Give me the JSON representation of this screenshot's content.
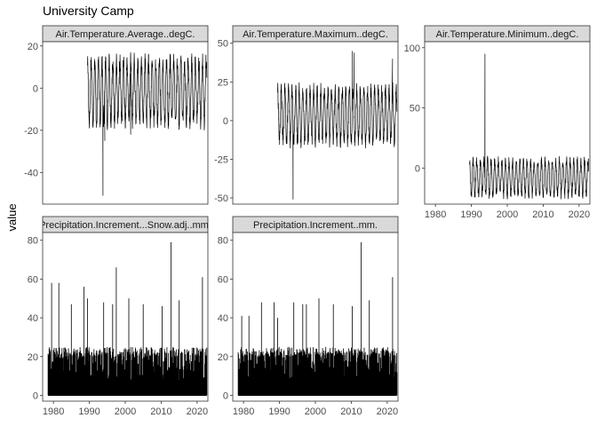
{
  "figure": {
    "title": "University Camp",
    "ylabel": "value"
  },
  "chart_data": [
    {
      "type": "line",
      "panel": "Air.Temperature.Average..degC.",
      "xlim": [
        1977,
        2023
      ],
      "ylim": [
        -55,
        22
      ],
      "yticks": [
        -40,
        -20,
        0,
        20
      ],
      "x_range": [
        1989.5,
        2022.7
      ],
      "band": [
        -20,
        17
      ],
      "spikes": [
        [
          1993.8,
          -51
        ],
        [
          1994.3,
          -25
        ],
        [
          2001.5,
          -22
        ]
      ]
    },
    {
      "type": "line",
      "panel": "Air.Temperature.Maximum..degC.",
      "xlim": [
        1977,
        2023
      ],
      "ylim": [
        -54,
        51
      ],
      "yticks": [
        -50,
        -25,
        0,
        25,
        50
      ],
      "x_range": [
        1989.5,
        2022.7
      ],
      "band": [
        -18,
        25
      ],
      "spikes": [
        [
          1993.8,
          -51
        ],
        [
          2010.3,
          45
        ],
        [
          2010.8,
          44
        ],
        [
          2021.5,
          40
        ]
      ]
    },
    {
      "type": "line",
      "panel": "Air.Temperature.Minimum..degC.",
      "xlim": [
        1977,
        2023
      ],
      "ylim": [
        -30,
        105
      ],
      "yticks": [
        0,
        50,
        100
      ],
      "xticks": [
        1980,
        1990,
        2000,
        2010,
        2020
      ],
      "x_range": [
        1989.5,
        2022.7
      ],
      "band": [
        -26,
        10
      ],
      "spikes": [
        [
          1993.8,
          95
        ]
      ]
    },
    {
      "type": "bar",
      "panel": "Precipitation.Increment...Snow.adj..mm.",
      "xlim": [
        1977,
        2023
      ],
      "ylim": [
        -3,
        84
      ],
      "yticks": [
        0,
        20,
        40,
        60,
        80
      ],
      "xticks": [
        1980,
        1990,
        2000,
        2010,
        2020
      ],
      "x_range": [
        1978.5,
        2022.7
      ],
      "typical_max": 25,
      "spikes": [
        [
          1979.5,
          58
        ],
        [
          1981.5,
          58
        ],
        [
          1985,
          47
        ],
        [
          1988.5,
          56
        ],
        [
          1989.5,
          50
        ],
        [
          1994,
          48
        ],
        [
          1996.5,
          47
        ],
        [
          1997.5,
          66
        ],
        [
          2001,
          50
        ],
        [
          2005,
          47
        ],
        [
          2010.3,
          46
        ],
        [
          2012.7,
          79
        ],
        [
          2015,
          49
        ],
        [
          2021.5,
          61
        ]
      ]
    },
    {
      "type": "bar",
      "panel": "Precipitation.Increment..mm.",
      "xlim": [
        1977,
        2023
      ],
      "ylim": [
        -3,
        84
      ],
      "yticks": [
        0,
        20,
        40,
        60,
        80
      ],
      "xticks": [
        1980,
        1990,
        2000,
        2010,
        2020
      ],
      "x_range": [
        1978.5,
        2022.7
      ],
      "typical_max": 25,
      "spikes": [
        [
          1979.5,
          41
        ],
        [
          1981.5,
          41
        ],
        [
          1985,
          48
        ],
        [
          1988.5,
          48
        ],
        [
          1989.5,
          40
        ],
        [
          1994,
          48
        ],
        [
          1996.5,
          47
        ],
        [
          1997.5,
          47
        ],
        [
          2001,
          50
        ],
        [
          2005,
          47
        ],
        [
          2010.3,
          46
        ],
        [
          2012.7,
          79
        ],
        [
          2015,
          49
        ],
        [
          2021.5,
          61
        ]
      ]
    }
  ]
}
